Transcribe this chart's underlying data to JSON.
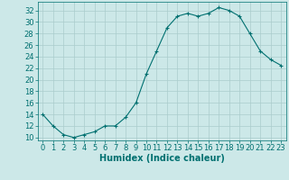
{
  "x": [
    0,
    1,
    2,
    3,
    4,
    5,
    6,
    7,
    8,
    9,
    10,
    11,
    12,
    13,
    14,
    15,
    16,
    17,
    18,
    19,
    20,
    21,
    22,
    23
  ],
  "y": [
    14,
    12,
    10.5,
    10,
    10.5,
    11,
    12,
    12,
    13.5,
    16,
    21,
    25,
    29,
    31,
    31.5,
    31,
    31.5,
    32.5,
    32,
    31,
    28,
    25,
    23.5,
    22.5
  ],
  "line_color": "#007070",
  "marker": "+",
  "marker_color": "#007070",
  "bg_color": "#cce8e8",
  "grid_color": "#aacccc",
  "xlabel": "Humidex (Indice chaleur)",
  "ylim_min": 9.5,
  "ylim_max": 33.5,
  "xlim_min": -0.5,
  "xlim_max": 23.5,
  "yticks": [
    10,
    12,
    14,
    16,
    18,
    20,
    22,
    24,
    26,
    28,
    30,
    32
  ],
  "xticks": [
    0,
    1,
    2,
    3,
    4,
    5,
    6,
    7,
    8,
    9,
    10,
    11,
    12,
    13,
    14,
    15,
    16,
    17,
    18,
    19,
    20,
    21,
    22,
    23
  ],
  "tick_color": "#007070",
  "label_color": "#007070",
  "font_size": 6,
  "xlabel_fontsize": 7,
  "linewidth": 0.8,
  "markersize": 3
}
